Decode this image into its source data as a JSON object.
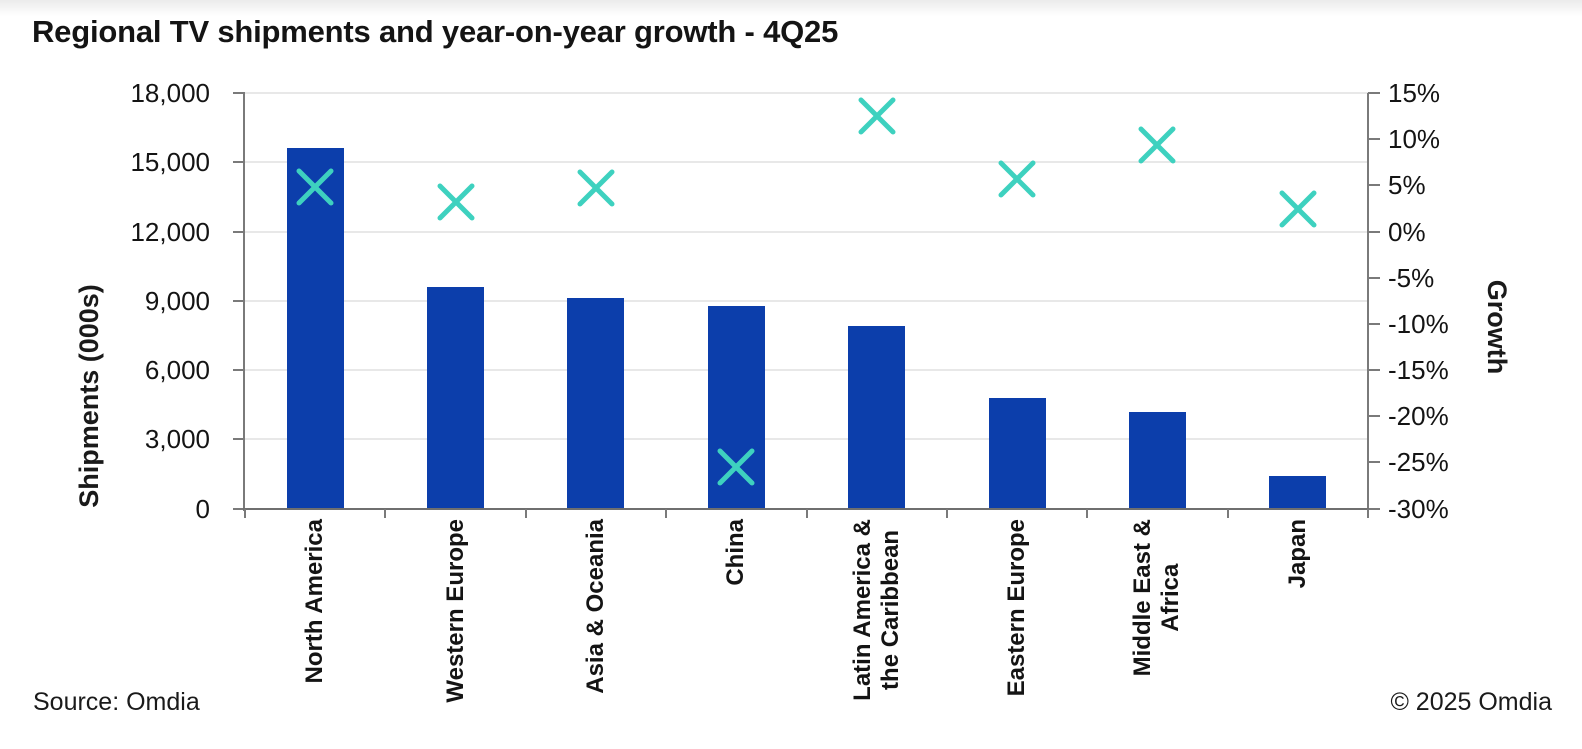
{
  "title": "Regional TV shipments and year-on-year growth - 4Q25",
  "footer": {
    "source": "Source: Omdia",
    "copyright": "© 2025 Omdia"
  },
  "colors": {
    "bar_blue": "#0c3eab",
    "marker_teal": "#3ed1bf",
    "axis_gray": "#7a7a7a",
    "grid_gray": "#e8e8e8",
    "text_dark": "#141414"
  },
  "chart_data": {
    "type": "bar",
    "title": "Regional TV shipments and year-on-year growth - 4Q25",
    "categories": [
      "North America",
      "Western Europe",
      "Asia & Oceania",
      "China",
      "Latin America & the Caribbean",
      "Eastern Europe",
      "Middle East & Africa",
      "Japan"
    ],
    "category_label_lines": [
      [
        "North America"
      ],
      [
        "Western Europe"
      ],
      [
        "Asia & Oceania"
      ],
      [
        "China"
      ],
      [
        "Latin America &",
        "the Caribbean"
      ],
      [
        "Eastern Europe"
      ],
      [
        "Middle East &",
        "Africa"
      ],
      [
        "Japan"
      ]
    ],
    "series": [
      {
        "name": "Shipments (000s)",
        "type": "bar",
        "axis": "left",
        "values": [
          15600,
          9600,
          9100,
          8770,
          7900,
          4800,
          4200,
          1400
        ]
      },
      {
        "name": "Growth",
        "type": "scatter",
        "marker": "x",
        "axis": "right",
        "values": [
          4.8,
          3.2,
          4.7,
          -25.5,
          12.5,
          5.7,
          9.4,
          2.4
        ]
      }
    ],
    "left_axis": {
      "label": "Shipments (000s)",
      "min": 0,
      "max": 18000,
      "tick_labels": [
        "18,000",
        "15,000",
        "12,000",
        "9,000",
        "6,000",
        "3,000",
        "0"
      ]
    },
    "right_axis": {
      "label": "Growth",
      "min": -30,
      "max": 15,
      "tick_labels": [
        "15%",
        "10%",
        "5%",
        "0%",
        "-5%",
        "-10%",
        "-15%",
        "-20%",
        "-25%",
        "-30%"
      ]
    },
    "grid": true,
    "legend": "none"
  }
}
